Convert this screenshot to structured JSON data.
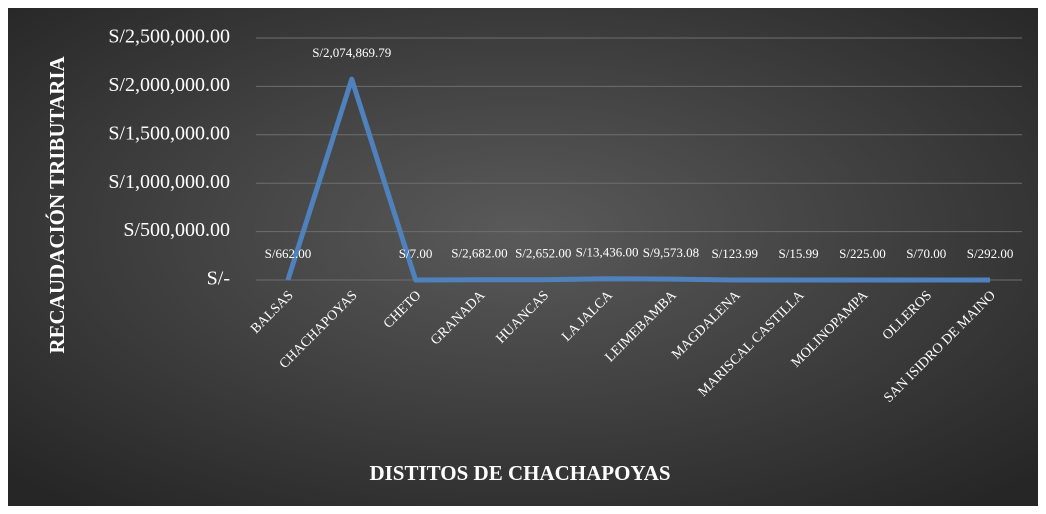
{
  "chart_data": {
    "type": "line",
    "xlabel": "DISTITOS DE CHACHAPOYAS",
    "ylabel": "RECAUDACIÓN TRIBUTARIA",
    "categories": [
      "BALSAS",
      "CHACHAPOYAS",
      "CHETO",
      "GRANADA",
      "HUANCAS",
      "LA JALCA",
      "LEIMEBAMBA",
      "MAGDALENA",
      "MARISCAL CASTILLA",
      "MOLINOPAMPA",
      "OLLEROS",
      "SAN ISIDRO DE MAINO"
    ],
    "series": [
      {
        "color": "#4f81bd",
        "values": [
          662,
          2074869.79,
          7,
          2682,
          2652,
          13436,
          9573.08,
          123.99,
          15.99,
          225,
          70,
          292
        ],
        "value_labels": [
          "S/662.00",
          "S/2,074,869.79",
          "S/7.00",
          "S/2,682.00",
          "S/2,652.00",
          "S/13,436.00",
          "S/9,573.08",
          "S/123.99",
          "S/15.99",
          "S/225.00",
          "S/70.00",
          "S/292.00"
        ]
      }
    ],
    "ylim": [
      0,
      2500000
    ],
    "yticks": [
      {
        "value": 0,
        "label": "S/-"
      },
      {
        "value": 500000,
        "label": "S/500,000.00"
      },
      {
        "value": 1000000,
        "label": "S/1,000,000.00"
      },
      {
        "value": 1500000,
        "label": "S/1,500,000.00"
      },
      {
        "value": 2000000,
        "label": "S/2,000,000.00"
      },
      {
        "value": 2500000,
        "label": "S/2,500,000.00"
      }
    ],
    "grid": true
  }
}
